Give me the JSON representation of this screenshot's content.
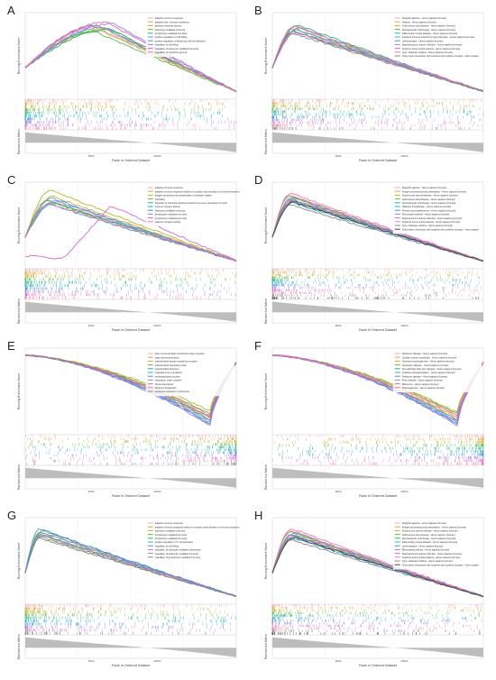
{
  "ylabel_res": "Running Enrichment Score",
  "ylabel_rank": "Ranked List Metric",
  "xlabel": "Rank in Ordered Dataset",
  "xticks": [
    "5000",
    "10000"
  ],
  "chart_data": [
    {
      "panel": "A",
      "type": "line",
      "peak_rank": 6000,
      "y0": 0.3,
      "legend": [
        "adaptive immune response",
        "adaptive rate, immune substance",
        "defense response activity",
        "leukocyte mediated immunity",
        "lymphocyte mediated immunity",
        "positive regulation of cell killing",
        "positive regulation of leukocyte cell-cell adhesion",
        "regulation of cell killing",
        "regulation of leukocyte mediated immunity",
        "regulation of interferon gamma"
      ],
      "series": [
        {
          "color": "#f4a6a6",
          "peak": 0.82
        },
        {
          "color": "#e8a043",
          "peak": 0.8
        },
        {
          "color": "#b5b82b",
          "peak": 0.78
        },
        {
          "color": "#5cb84a",
          "peak": 0.76
        },
        {
          "color": "#2ab07f",
          "peak": 0.79
        },
        {
          "color": "#23b4c2",
          "peak": 0.81
        },
        {
          "color": "#4a8ed9",
          "peak": 0.84
        },
        {
          "color": "#9a7de0",
          "peak": 0.86
        },
        {
          "color": "#d969c9",
          "peak": 0.88
        },
        {
          "color": "#f27aa0",
          "peak": 0.83
        }
      ]
    },
    {
      "panel": "B",
      "type": "line",
      "peak_rank": 1800,
      "y0": 0.3,
      "legend": [
        "Allograft rejection - Homo sapiens (human)",
        "Asthma - Homo sapiens (human)",
        "Graft-versus-host disease - Homo sapiens (human)",
        "Hematopoietic cell lineage - Homo sapiens (human)",
        "Inflammatory bowel disease - Homo sapiens (human)",
        "Intestinal immune network for IgA production - Homo sapiens (human)",
        "Leishmaniasis - Homo sapiens (human)",
        "Staphylococcus aureus infection - Homo sapiens (human)",
        "Systemic lupus erythematosus - Homo sapiens (human)",
        "Type I diabetes mellitus - Homo sapiens (human)",
        "Viral protein interaction with cytokine and cytokine receptor - Homo sapiens (human)"
      ],
      "series": [
        {
          "color": "#f4a6a6",
          "peak": 0.8
        },
        {
          "color": "#e8a043",
          "peak": 0.78
        },
        {
          "color": "#b5b82b",
          "peak": 0.82
        },
        {
          "color": "#5cb84a",
          "peak": 0.76
        },
        {
          "color": "#2ab07f",
          "peak": 0.84
        },
        {
          "color": "#23b4c2",
          "peak": 0.79
        },
        {
          "color": "#4a8ed9",
          "peak": 0.77
        },
        {
          "color": "#9a7de0",
          "peak": 0.81
        },
        {
          "color": "#d969c9",
          "peak": 0.75
        },
        {
          "color": "#f27aa0",
          "peak": 0.83
        },
        {
          "color": "#888888",
          "peak": 0.74
        }
      ]
    },
    {
      "panel": "C",
      "type": "line",
      "peak_rank": 2000,
      "y0": 0.3,
      "legend": [
        "adaptive immune response",
        "adaptive immune response based on somatic recombination of immune receptors built from immunoglobulin superfamily domains",
        "antigen processing and presentation of peptide antigen",
        "cell killing",
        "detection of chemical stimulus involved in sensory perception of smell",
        "immune receptor activity",
        "leukocyte mediated immunity",
        "lymphocyte mediated immunity",
        "lymphocyte mediated immunity",
        "olfactory receptor activity"
      ],
      "series": [
        {
          "color": "#f4a6a6",
          "peak": 0.78
        },
        {
          "color": "#e8a043",
          "peak": 0.82
        },
        {
          "color": "#b5b82b",
          "peak": 0.9
        },
        {
          "color": "#5cb84a",
          "peak": 0.76
        },
        {
          "color": "#2ab07f",
          "peak": 0.74
        },
        {
          "color": "#23b4c2",
          "peak": 0.8
        },
        {
          "color": "#4a8ed9",
          "peak": 0.72
        },
        {
          "color": "#9a7de0",
          "peak": 0.77
        },
        {
          "color": "#d969c9",
          "peak": 0.7
        },
        {
          "color": "#f27aa0",
          "peak": 0.73
        }
      ]
    },
    {
      "panel": "D",
      "type": "line",
      "peak_rank": 1500,
      "y0": 0.3,
      "legend": [
        "Allograft rejection - Homo sapiens (human)",
        "Antigen processing and presentation - Homo sapiens (human)",
        "Autoimmune thyroid disease - Homo sapiens (human)",
        "Graft-versus-host disease - Homo sapiens (human)",
        "Hematopoietic cell lineage - Homo sapiens (human)",
        "Olfactory transduction - Homo sapiens (human)",
        "Primary immunodeficiency - Homo sapiens (human)",
        "Rheumatoid arthritis - Homo sapiens (human)",
        "Staphylococcus aureus infection - Homo sapiens (human)",
        "Systemic lupus erythematosus - Homo sapiens (human)",
        "Type I diabetes mellitus - Homo sapiens (human)",
        "Viral protein interaction with cytokine and cytokine receptor - Homo sapiens (human)"
      ],
      "series": [
        {
          "color": "#f4a6a6",
          "peak": 0.84
        },
        {
          "color": "#e8a043",
          "peak": 0.8
        },
        {
          "color": "#b5b82b",
          "peak": 0.78
        },
        {
          "color": "#5cb84a",
          "peak": 0.82
        },
        {
          "color": "#2ab07f",
          "peak": 0.76
        },
        {
          "color": "#23b4c2",
          "peak": 0.74
        },
        {
          "color": "#4a8ed9",
          "peak": 0.79
        },
        {
          "color": "#9a7de0",
          "peak": 0.81
        },
        {
          "color": "#d969c9",
          "peak": 0.77
        },
        {
          "color": "#f27aa0",
          "peak": 0.86
        },
        {
          "color": "#888888",
          "peak": 0.72
        },
        {
          "color": "#444444",
          "peak": 0.75
        }
      ]
    },
    {
      "panel": "E",
      "type": "line",
      "inverted": true,
      "trough_rank": 14000,
      "legend": [
        "actin monomerization anchored protein complex",
        "large ribosomal subunit",
        "mitochondrial protein-containing complex",
        "mitochondrial respiratory chain",
        "mitochondrial ribosome",
        "organelle inner membrane",
        "oxidoreductase complex",
        "respiratory chain complex",
        "ribosomal subunit",
        "ribosome biogenesis",
        "structural constituent of ribosome"
      ],
      "series": [
        {
          "color": "#f4a6a6",
          "peak": -0.7
        },
        {
          "color": "#e8a043",
          "peak": -0.72
        },
        {
          "color": "#b5b82b",
          "peak": -0.62
        },
        {
          "color": "#5cb84a",
          "peak": -0.66
        },
        {
          "color": "#2ab07f",
          "peak": -0.74
        },
        {
          "color": "#23b4c2",
          "peak": -0.78
        },
        {
          "color": "#4a8ed9",
          "peak": -0.8
        },
        {
          "color": "#9a7de0",
          "peak": -0.82
        },
        {
          "color": "#d969c9",
          "peak": -0.76
        },
        {
          "color": "#f27aa0",
          "peak": -0.68
        },
        {
          "color": "#888888",
          "peak": -0.71
        }
      ]
    },
    {
      "panel": "F",
      "type": "line",
      "inverted": true,
      "trough_rank": 14000,
      "legend": [
        "Alzheimer disease - Homo sapiens (human)",
        "Cardiac muscle contraction - Homo sapiens (human)",
        "Chemical carcinogenesis - Homo sapiens (human)",
        "Huntington disease - Homo sapiens (human)",
        "Non-alcoholic fatty liver disease - Homo sapiens (human)",
        "Oxidative phosphorylation - Homo sapiens (human)",
        "Parkinson disease - Homo sapiens (human)",
        "Prion disease - Homo sapiens (human)",
        "Ribosome - Homo sapiens (human)",
        "Thermogenesis - Homo sapiens (human)"
      ],
      "series": [
        {
          "color": "#f4a6a6",
          "peak": -0.7
        },
        {
          "color": "#e8a043",
          "peak": -0.72
        },
        {
          "color": "#b5b82b",
          "peak": -0.64
        },
        {
          "color": "#5cb84a",
          "peak": -0.66
        },
        {
          "color": "#2ab07f",
          "peak": -0.74
        },
        {
          "color": "#23b4c2",
          "peak": -0.78
        },
        {
          "color": "#4a8ed9",
          "peak": -0.8
        },
        {
          "color": "#9a7de0",
          "peak": -0.82
        },
        {
          "color": "#d969c9",
          "peak": -0.76
        },
        {
          "color": "#f27aa0",
          "peak": -0.68
        }
      ]
    },
    {
      "panel": "G",
      "type": "line",
      "peak_rank": 1200,
      "y0": 0.3,
      "legend": [
        "adaptive immune response",
        "adaptive immune response based on somatic recombination of immune receptors built from immunoglobulin superfamily domains",
        "leukocyte mediated immunity",
        "lymphocyte mediated immunity",
        "lymphocyte mediated immunity",
        "positive regulation of T cell activation",
        "regulation of cell killing",
        "regulation of leukocyte mediated cytotoxicity",
        "regulation of leukocyte mediated immunity",
        "regulation of lymphocyte mediated immunity"
      ],
      "series": [
        {
          "color": "#f4a6a6",
          "peak": 0.8
        },
        {
          "color": "#e8a043",
          "peak": 0.78
        },
        {
          "color": "#b5b82b",
          "peak": 0.82
        },
        {
          "color": "#5cb84a",
          "peak": 0.76
        },
        {
          "color": "#2ab07f",
          "peak": 0.84
        },
        {
          "color": "#23b4c2",
          "peak": 0.79
        },
        {
          "color": "#4a8ed9",
          "peak": 0.86
        },
        {
          "color": "#9a7de0",
          "peak": 0.81
        },
        {
          "color": "#d969c9",
          "peak": 0.77
        },
        {
          "color": "#888888",
          "peak": 0.74
        }
      ]
    },
    {
      "panel": "H",
      "type": "line",
      "peak_rank": 1600,
      "y0": 0.3,
      "legend": [
        "Allograft rejection - Homo sapiens (human)",
        "Antigen processing and presentation - Homo sapiens (human)",
        "Autoimmune thyroid disease - Homo sapiens (human)",
        "Graft-versus-host disease - Homo sapiens (human)",
        "Hematopoietic cell lineage - Homo sapiens (human)",
        "Inflammatory bowel disease - Homo sapiens (human)",
        "Leishmaniasis - Homo sapiens (human)",
        "Rheumatoid arthritis - Homo sapiens (human)",
        "Staphylococcus aureus infection - Homo sapiens (human)",
        "Systemic lupus erythematosus - Homo sapiens (human)",
        "Type I diabetes mellitus - Homo sapiens (human)",
        "Viral protein interaction with cytokine and cytokine receptor - Homo sapiens (human)"
      ],
      "series": [
        {
          "color": "#f4a6a6",
          "peak": 0.84
        },
        {
          "color": "#e8a043",
          "peak": 0.8
        },
        {
          "color": "#b5b82b",
          "peak": 0.78
        },
        {
          "color": "#5cb84a",
          "peak": 0.82
        },
        {
          "color": "#2ab07f",
          "peak": 0.76
        },
        {
          "color": "#23b4c2",
          "peak": 0.74
        },
        {
          "color": "#4a8ed9",
          "peak": 0.79
        },
        {
          "color": "#9a7de0",
          "peak": 0.81
        },
        {
          "color": "#d969c9",
          "peak": 0.77
        },
        {
          "color": "#f27aa0",
          "peak": 0.86
        },
        {
          "color": "#888888",
          "peak": 0.72
        },
        {
          "color": "#444444",
          "peak": 0.75
        }
      ]
    }
  ]
}
